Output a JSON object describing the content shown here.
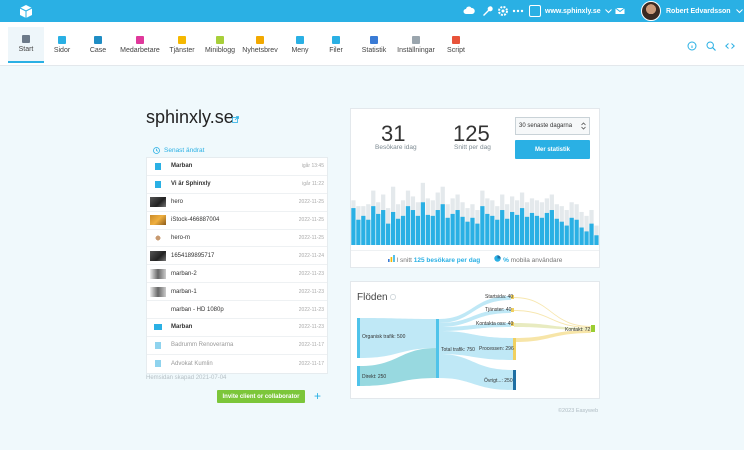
{
  "user": {
    "name": "Robert Edvardsson"
  },
  "site_selector": {
    "label": "www.sphinxly.se"
  },
  "nav": {
    "items": [
      {
        "label": "Start",
        "color": "#6c7a89"
      },
      {
        "label": "Sidor",
        "color": "#2ab0e4"
      },
      {
        "label": "Case",
        "color": "#1f8dc4"
      },
      {
        "label": "Medarbetare",
        "color": "#e0389b"
      },
      {
        "label": "Tjänster",
        "color": "#f5b800"
      },
      {
        "label": "Miniblogg",
        "color": "#a8cf3a"
      },
      {
        "label": "Nyhetsbrev",
        "color": "#f2a900"
      },
      {
        "label": "Meny",
        "color": "#2ab0e4"
      },
      {
        "label": "Filer",
        "color": "#2ab0e4"
      },
      {
        "label": "Statistik",
        "color": "#3a7bd5"
      },
      {
        "label": "Inställningar",
        "color": "#9aa5ad"
      },
      {
        "label": "Script",
        "color": "#e8533a"
      }
    ]
  },
  "site": {
    "title": "sphinxly.se",
    "created": "Hemsidan skapad 2021-07-04"
  },
  "recent": {
    "heading": "Senast ändrat",
    "rows": [
      {
        "label": "Marban",
        "date": "igår 13:45",
        "kind": "page",
        "bold": true
      },
      {
        "label": "Vi är Sphinxly",
        "date": "igår 11:22",
        "kind": "page",
        "bold": true
      },
      {
        "label": "hero",
        "date": "2022-11-25",
        "kind": "photo-dark"
      },
      {
        "label": "iStock-466887004",
        "date": "2022-11-25",
        "kind": "photo-orange"
      },
      {
        "label": "hero-m",
        "date": "2022-11-25",
        "kind": "logo"
      },
      {
        "label": "1654189895717",
        "date": "2022-11-24",
        "kind": "photo-dark"
      },
      {
        "label": "marban-2",
        "date": "2022-11-23",
        "kind": "photo-mix"
      },
      {
        "label": "marban-1",
        "date": "2022-11-23",
        "kind": "photo-mix"
      },
      {
        "label": "marban - HD 1080p",
        "date": "2022-11-23",
        "kind": "none"
      },
      {
        "label": "Marban",
        "date": "2022-11-23",
        "kind": "folder",
        "bold": true
      },
      {
        "label": "Badrumm Renoverarna",
        "date": "2022-11-17",
        "kind": "page",
        "muted": true
      },
      {
        "label": "Advokat Kumlin",
        "date": "2022-11-17",
        "kind": "page",
        "muted": true
      }
    ]
  },
  "invite": {
    "label": "Invite client or collaborator",
    "plus": "+"
  },
  "stats": {
    "visitors_today": "31",
    "visitors_today_label": "Besökare idag",
    "avg_per_day": "125",
    "avg_per_day_label": "Snitt per dag",
    "period": "30 senaste dagarna",
    "more_button": "Mer statistik",
    "footer_prefix": "I snitt ",
    "footer_avg": "125 besökare per dag",
    "footer_mobile_pct": "% ",
    "footer_mobile_label": "mobila användare"
  },
  "chart_data": {
    "type": "bar",
    "series": [
      {
        "values": [
          38,
          26,
          30,
          26,
          40,
          32,
          36,
          22,
          34,
          27,
          30,
          40,
          36,
          30,
          44,
          31,
          30,
          36,
          42,
          28,
          32,
          36,
          29,
          24,
          28,
          22,
          40,
          32,
          30,
          26,
          36,
          27,
          34,
          31,
          38,
          29,
          33,
          30,
          28,
          33,
          36,
          27,
          24,
          20,
          28,
          26,
          18,
          14,
          22,
          10
        ]
      },
      {
        "values": [
          46,
          40,
          40,
          42,
          56,
          44,
          52,
          38,
          60,
          42,
          46,
          56,
          50,
          44,
          64,
          48,
          46,
          54,
          60,
          42,
          48,
          52,
          44,
          38,
          42,
          36,
          56,
          48,
          46,
          40,
          52,
          42,
          50,
          46,
          54,
          44,
          48,
          46,
          44,
          48,
          52,
          42,
          40,
          36,
          44,
          42,
          34,
          30,
          36,
          20
        ]
      }
    ]
  },
  "flows": {
    "title": "Flöden",
    "colors": {
      "organic": "#4fc3ea",
      "direct": "#4fc3ea",
      "process": "#f0d060",
      "contact": "#9acd32",
      "other": "#1f6fa3"
    },
    "nodes": {
      "organic": "Organisk trafik: 500",
      "direct": "Direkt: 250",
      "total": "Total trafik: 750",
      "start": "Startsida: 40",
      "services": "Tjänster: 40",
      "contactpage": "Kontakta oss: 40",
      "process": "Processen: 296",
      "other": "Övrigt...: 250",
      "contact": "Kontakt: 72"
    }
  },
  "footer": {
    "copyright": "©2023 Easyweb"
  }
}
